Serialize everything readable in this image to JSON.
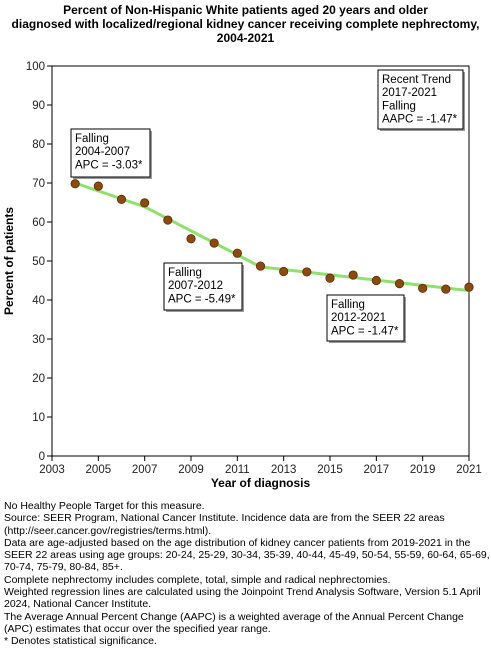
{
  "chart_data": {
    "type": "line",
    "title": [
      "Percent of Non-Hispanic White patients aged 20 years and older",
      "diagnosed with localized/regional kidney cancer receiving complete nephrectomy,",
      "2004-2021"
    ],
    "xlabel": "Year of diagnosis",
    "ylabel": "Percent of patients",
    "xlim": [
      2003,
      2021
    ],
    "ylim": [
      0,
      100
    ],
    "x_ticks": [
      2003,
      2005,
      2007,
      2009,
      2011,
      2013,
      2015,
      2017,
      2019,
      2021
    ],
    "y_ticks": [
      0,
      10,
      20,
      30,
      40,
      50,
      60,
      70,
      80,
      90,
      100
    ],
    "grid": false,
    "observed": {
      "x": [
        2004,
        2005,
        2006,
        2007,
        2008,
        2009,
        2010,
        2011,
        2012,
        2013,
        2014,
        2015,
        2016,
        2017,
        2018,
        2019,
        2020,
        2021
      ],
      "y": [
        69.8,
        69.2,
        65.8,
        64.9,
        60.5,
        55.7,
        54.6,
        52.0,
        48.7,
        47.3,
        47.2,
        45.6,
        46.4,
        45.0,
        44.2,
        43.0,
        42.8,
        43.3
      ],
      "color": "#8b4a10"
    },
    "trend": {
      "x": [
        2004,
        2007,
        2012,
        2021
      ],
      "y": [
        70.0,
        63.9,
        48.5,
        42.4
      ],
      "color": "#90e070"
    },
    "annotations": [
      {
        "lines": [
          "Falling",
          "2004-2007",
          "APC = -3.03*"
        ]
      },
      {
        "lines": [
          "Falling",
          "2007-2012",
          "APC = -5.49*"
        ]
      },
      {
        "lines": [
          "Falling",
          "2012-2021",
          "APC = -1.47*"
        ]
      },
      {
        "lines": [
          "Recent Trend",
          "2017-2021",
          "Falling",
          "AAPC = -1.47*"
        ]
      }
    ]
  },
  "footnotes": [
    "No Healthy People Target for this measure.",
    "Source: SEER Program, National Cancer Institute. Incidence data are from the SEER 22 areas (http://seer.cancer.gov/registries/terms.html).",
    "Data are age-adjusted based on the age distribution of kidney cancer patients from 2019-2021 in the SEER 22 areas using age groups: 20-24, 25-29, 30-34, 35-39, 40-44, 45-49, 50-54, 55-59, 60-64, 65-69, 70-74, 75-79, 80-84, 85+.",
    "Complete nephrectomy includes complete, total, simple and radical nephrectomies.",
    "Weighted regression lines are calculated using the Joinpoint Trend Analysis Software, Version 5.1 April 2024, National Cancer Institute.",
    "The Average Annual Percent Change (AAPC) is a weighted average of the Annual Percent Change (APC) estimates that occur over the specified year range.",
    "* Denotes statistical significance."
  ]
}
